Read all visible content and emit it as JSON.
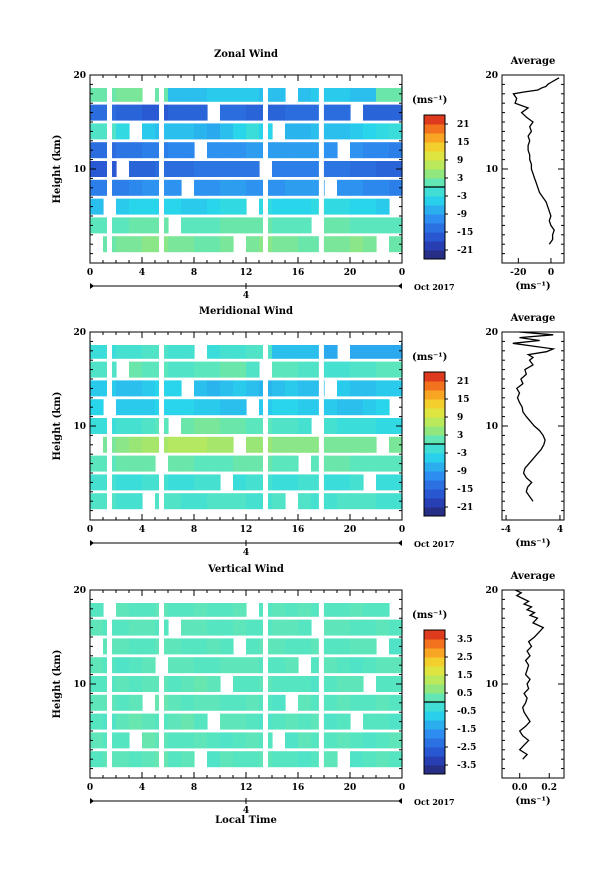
{
  "bottom_xlabel": "Local Time",
  "chart_data": [
    {
      "type": "heatmap",
      "title": "Zonal Wind",
      "ylabel": "Height (km)",
      "x": [
        0,
        1,
        2,
        3,
        4,
        5,
        6,
        7,
        8,
        9,
        10,
        11,
        12,
        13,
        14,
        15,
        16,
        17,
        18,
        19,
        20,
        21,
        22,
        23
      ],
      "y": [
        2,
        4,
        6,
        8,
        10,
        12,
        14,
        16,
        18
      ],
      "xlim": [
        0,
        24
      ],
      "ylim": [
        0,
        20
      ],
      "xticks": [
        "0",
        "4",
        "8",
        "12",
        "16",
        "20",
        "0"
      ],
      "yticks": [
        "20",
        "10"
      ],
      "date_labels": [
        "4"
      ],
      "date_suffix": "Oct 2017",
      "gaps": [
        1.5,
        5.5,
        13.5,
        17.8
      ],
      "colorbar": {
        "unit": "(ms⁻¹)",
        "ticks": [
          "21",
          "15",
          "9",
          "3",
          "-3",
          "-9",
          "-15",
          "-21"
        ],
        "range": [
          -24,
          24
        ]
      },
      "values": [
        [
          2,
          2,
          3,
          3,
          4,
          4,
          3,
          3,
          2,
          2,
          3,
          3,
          3,
          4,
          3,
          3,
          2,
          2,
          3,
          3,
          4,
          3,
          2,
          2
        ],
        [
          1,
          1,
          1,
          2,
          2,
          2,
          2,
          1,
          1,
          1,
          2,
          2,
          2,
          2,
          1,
          1,
          1,
          2,
          2,
          2,
          1,
          1,
          1,
          1
        ],
        [
          -6,
          -6,
          -5,
          -4,
          -4,
          -4,
          -4,
          -5,
          -5,
          -4,
          -3,
          -3,
          -3,
          -3,
          -4,
          -4,
          -4,
          -3,
          -3,
          -3,
          -4,
          -4,
          -5,
          -5
        ],
        [
          -12,
          -12,
          -12,
          -11,
          -10,
          -10,
          -10,
          -11,
          -10,
          -10,
          -9,
          -9,
          -10,
          -10,
          -10,
          -9,
          -9,
          -9,
          -9,
          -10,
          -10,
          -11,
          -11,
          -12
        ],
        [
          -16,
          -16,
          -16,
          -15,
          -15,
          -14,
          -14,
          -14,
          -13,
          -13,
          -13,
          -13,
          -13,
          -13,
          -12,
          -12,
          -12,
          -12,
          -13,
          -13,
          -14,
          -14,
          -15,
          -15
        ],
        [
          -14,
          -14,
          -13,
          -13,
          -12,
          -12,
          -11,
          -11,
          -11,
          -10,
          -10,
          -10,
          -9,
          -9,
          -9,
          -9,
          -9,
          -9,
          -10,
          -10,
          -10,
          -11,
          -11,
          -12
        ],
        [
          0,
          0,
          -3,
          -4,
          -5,
          -6,
          -6,
          -6,
          -7,
          -8,
          -6,
          -4,
          -2,
          -4,
          -6,
          -7,
          -7,
          -6,
          -6,
          -6,
          -5,
          -4,
          -3,
          -2
        ],
        [
          -14,
          -14,
          -15,
          -15,
          -16,
          -16,
          -15,
          -15,
          -15,
          -14,
          -14,
          -14,
          -15,
          -15,
          -15,
          -14,
          -14,
          -14,
          -14,
          -14,
          -15,
          -15,
          -15,
          -15
        ],
        [
          2,
          2,
          3,
          3,
          2,
          2,
          -6,
          -6,
          -6,
          -5,
          -5,
          -5,
          -5,
          -6,
          -6,
          -6,
          -6,
          -5,
          -5,
          -5,
          -6,
          -6,
          2,
          2
        ]
      ],
      "profile": {
        "title": "Average",
        "xlabel": "(ms⁻¹)",
        "xlim": [
          -30,
          8
        ],
        "xticks": [
          "-20",
          "0"
        ],
        "yticks": [
          "20",
          "10"
        ],
        "x": [
          -1,
          1,
          1,
          2,
          0,
          -1,
          0,
          -1,
          -2,
          -3,
          -5,
          -7,
          -8,
          -9,
          -10,
          -11,
          -12,
          -12,
          -13,
          -13,
          -14,
          -14,
          -13,
          -14,
          -12,
          -13,
          -11,
          -15,
          -18,
          -14,
          -22,
          -21,
          -23,
          -16,
          -8,
          -6,
          -3,
          -2,
          0,
          2,
          5
        ],
        "y": [
          2,
          2.5,
          3,
          3.5,
          4,
          4.5,
          5,
          5.5,
          6,
          6.5,
          7,
          7.5,
          8,
          8.5,
          9,
          9.5,
          10,
          10.5,
          11,
          11.5,
          12,
          12.5,
          13,
          13.5,
          14,
          14.5,
          15,
          15.5,
          16,
          16.5,
          17,
          17.5,
          18,
          18.2,
          18.4,
          18.6,
          18.8,
          19,
          19.2,
          19.4,
          19.7
        ]
      }
    },
    {
      "type": "heatmap",
      "title": "Meridional Wind",
      "ylabel": "Height (km)",
      "x": [
        0,
        1,
        2,
        3,
        4,
        5,
        6,
        7,
        8,
        9,
        10,
        11,
        12,
        13,
        14,
        15,
        16,
        17,
        18,
        19,
        20,
        21,
        22,
        23
      ],
      "y": [
        2,
        4,
        6,
        8,
        10,
        12,
        14,
        16,
        18
      ],
      "xlim": [
        0,
        24
      ],
      "ylim": [
        0,
        20
      ],
      "xticks": [
        "0",
        "4",
        "8",
        "12",
        "16",
        "20",
        "0"
      ],
      "yticks": [
        "20",
        "10"
      ],
      "date_labels": [
        "4"
      ],
      "date_suffix": "Oct 2017",
      "gaps": [
        1.5,
        5.5,
        13.5,
        17.8
      ],
      "colorbar": {
        "unit": "(ms⁻¹)",
        "ticks": [
          "21",
          "15",
          "9",
          "3",
          "-3",
          "-9",
          "-15",
          "-21"
        ],
        "range": [
          -24,
          24
        ]
      },
      "values": [
        [
          0,
          0,
          -1,
          -1,
          0,
          0,
          0,
          -1,
          -1,
          0,
          0,
          0,
          -1,
          -1,
          0,
          0,
          0,
          -1,
          -1,
          0,
          0,
          0,
          -1,
          -1
        ],
        [
          -1,
          -1,
          -2,
          -2,
          -1,
          -1,
          -2,
          -2,
          -1,
          -1,
          -2,
          -2,
          -1,
          -1,
          -2,
          -2,
          -1,
          -1,
          -2,
          -2,
          -1,
          -1,
          -2,
          -2
        ],
        [
          1,
          1,
          2,
          2,
          2,
          2,
          2,
          2,
          1,
          1,
          1,
          2,
          2,
          2,
          1,
          1,
          1,
          1,
          2,
          2,
          1,
          1,
          1,
          1
        ],
        [
          3,
          3,
          4,
          5,
          6,
          6,
          7,
          7,
          7,
          6,
          6,
          5,
          5,
          5,
          4,
          4,
          4,
          4,
          3,
          3,
          3,
          3,
          3,
          3
        ],
        [
          -2,
          -2,
          -1,
          -1,
          0,
          1,
          2,
          2,
          3,
          3,
          2,
          2,
          1,
          1,
          0,
          0,
          -1,
          -1,
          -1,
          -2,
          -2,
          -2,
          -3,
          -3
        ],
        [
          -4,
          -4,
          -5,
          -5,
          -5,
          -4,
          -4,
          -4,
          -5,
          -5,
          -6,
          -6,
          -5,
          -5,
          -4,
          -4,
          -5,
          -5,
          -5,
          -6,
          -6,
          -5,
          -4,
          -4
        ],
        [
          -5,
          -5,
          -6,
          -6,
          -5,
          -4,
          -4,
          -5,
          -6,
          -7,
          -6,
          -5,
          -6,
          -7,
          -6,
          -5,
          -6,
          -6,
          -5,
          -5,
          -6,
          -6,
          -5,
          -5
        ],
        [
          0,
          0,
          2,
          2,
          1,
          1,
          0,
          0,
          1,
          1,
          2,
          2,
          0,
          0,
          1,
          1,
          0,
          0,
          -1,
          -1,
          0,
          0,
          1,
          1
        ],
        [
          -2,
          -2,
          -1,
          -1,
          0,
          0,
          -1,
          -1,
          -2,
          -2,
          -1,
          -1,
          0,
          0,
          -6,
          -6,
          -6,
          -6,
          -8,
          -8,
          -8,
          -8,
          -8,
          -8
        ]
      ],
      "profile": {
        "title": "Average",
        "xlabel": "(ms⁻¹)",
        "xlim": [
          -4.6,
          4.6
        ],
        "xticks": [
          "-4",
          "4"
        ],
        "yticks": [
          "20",
          "10"
        ],
        "x": [
          0,
          -0.5,
          -1,
          -0.8,
          -0.2,
          -1,
          -1.4,
          -1.2,
          -0.6,
          0,
          0.6,
          1.2,
          1.6,
          1.8,
          1.5,
          1,
          0.2,
          -0.4,
          -1,
          -1.5,
          -1.6,
          -2,
          -2.3,
          -2,
          -2.4,
          -1.5,
          -1.8,
          -1,
          -1.2,
          0,
          -0.5,
          0,
          -0.7,
          2,
          3,
          0,
          -3,
          1,
          -2,
          3,
          -2
        ],
        "y": [
          2,
          2.5,
          3,
          3.5,
          4,
          4.5,
          5,
          5.5,
          6,
          6.5,
          7,
          7.5,
          8,
          8.5,
          9,
          9.5,
          10,
          10.5,
          11,
          11.5,
          12,
          12.5,
          13,
          13.5,
          14,
          14.5,
          15,
          15.5,
          16,
          16.5,
          17,
          17.3,
          17.6,
          17.9,
          18.2,
          18.5,
          18.8,
          19.1,
          19.4,
          19.7,
          20
        ]
      }
    },
    {
      "type": "heatmap",
      "title": "Vertical Wind",
      "ylabel": "Height (km)",
      "x": [
        0,
        1,
        2,
        3,
        4,
        5,
        6,
        7,
        8,
        9,
        10,
        11,
        12,
        13,
        14,
        15,
        16,
        17,
        18,
        19,
        20,
        21,
        22,
        23
      ],
      "y": [
        2,
        4,
        6,
        8,
        10,
        12,
        14,
        16,
        18
      ],
      "xlim": [
        0,
        24
      ],
      "ylim": [
        0,
        20
      ],
      "xticks": [
        "0",
        "4",
        "8",
        "12",
        "16",
        "20",
        "0"
      ],
      "yticks": [
        "20",
        "10"
      ],
      "date_labels": [
        "4"
      ],
      "date_suffix": "Oct 2017",
      "gaps": [
        1.5,
        5.5,
        13.5,
        17.8
      ],
      "colorbar": {
        "unit": "(ms⁻¹)",
        "ticks": [
          "3.5",
          "2.5",
          "1.5",
          "0.5",
          "-0.5",
          "-1.5",
          "-2.5",
          "-3.5"
        ],
        "range": [
          -4,
          4
        ]
      },
      "values": [
        [
          0.1,
          0.2,
          0.2,
          0.1,
          0.2,
          0.3,
          0.1,
          0.2,
          0.1,
          0.0,
          0.2,
          0.1,
          0.1,
          0.2,
          0.1,
          0.1,
          0.0,
          0.1,
          0.2,
          0.1,
          0.0,
          0.1,
          0.2,
          0.1
        ],
        [
          0.2,
          0.1,
          0.1,
          0.2,
          0.3,
          0.2,
          0.1,
          0.1,
          0.2,
          0.1,
          0.0,
          0.1,
          0.2,
          0.1,
          0.1,
          0.0,
          0.2,
          0.1,
          0.1,
          0.2,
          0.1,
          0.0,
          0.1,
          0.2
        ],
        [
          0.1,
          0.0,
          0.2,
          0.3,
          0.2,
          0.1,
          0.2,
          0.3,
          0.1,
          0.1,
          0.2,
          0.2,
          0.1,
          0.0,
          0.1,
          0.2,
          0.1,
          0.2,
          0.0,
          0.1,
          0.2,
          0.1,
          0.1,
          0.0
        ],
        [
          0.2,
          0.2,
          0.1,
          0.2,
          0.3,
          0.3,
          0.2,
          0.1,
          0.2,
          0.2,
          0.1,
          0.1,
          0.2,
          0.1,
          0.0,
          0.1,
          0.2,
          0.1,
          0.1,
          0.2,
          0.1,
          0.1,
          0.2,
          0.1
        ],
        [
          0.1,
          0.1,
          0.2,
          0.1,
          0.2,
          0.2,
          0.1,
          0.2,
          0.3,
          0.2,
          0.2,
          0.1,
          0.1,
          0.2,
          0.1,
          0.1,
          0.1,
          0.0,
          0.1,
          0.2,
          0.2,
          0.1,
          0.1,
          0.1
        ],
        [
          0.2,
          0.1,
          0.0,
          0.1,
          0.2,
          0.1,
          0.2,
          0.2,
          0.1,
          0.1,
          0.2,
          0.2,
          0.2,
          0.1,
          0.1,
          0.2,
          0.1,
          0.1,
          0.2,
          0.1,
          0.0,
          0.1,
          0.2,
          0.2
        ],
        [
          0.1,
          0.2,
          0.2,
          0.1,
          0.1,
          0.2,
          0.2,
          0.1,
          0.1,
          0.2,
          0.1,
          0.0,
          0.1,
          0.2,
          0.2,
          0.1,
          0.1,
          0.2,
          0.1,
          0.1,
          0.2,
          0.2,
          0.1,
          0.0
        ],
        [
          0.2,
          0.1,
          0.1,
          0.2,
          0.2,
          0.1,
          0.1,
          0.2,
          0.2,
          0.1,
          0.1,
          0.2,
          0.1,
          0.1,
          0.2,
          0.2,
          0.1,
          0.1,
          0.2,
          0.2,
          0.1,
          0.1,
          0.2,
          0.1
        ],
        [
          0.1,
          0.1,
          0.2,
          0.1,
          0.1,
          0.2,
          0.1,
          0.1,
          0.2,
          0.1,
          0.1,
          0.2,
          0.1,
          0.1,
          0.2,
          0.1,
          0.2,
          0.1,
          0.1,
          0.1,
          0.2,
          0.1,
          0.1,
          0.2
        ]
      ],
      "profile": {
        "title": "Average",
        "xlabel": "(ms⁻¹)",
        "xlim": [
          -0.12,
          0.3
        ],
        "xticks": [
          "0.0",
          "0.2"
        ],
        "yticks": [
          "20",
          "10"
        ],
        "x": [
          0.02,
          0.05,
          0.0,
          0.03,
          0.06,
          0.02,
          0.0,
          0.04,
          0.07,
          0.05,
          0.03,
          0.02,
          0.04,
          0.05,
          0.03,
          0.06,
          0.05,
          0.07,
          0.04,
          0.05,
          0.06,
          0.04,
          0.07,
          0.05,
          0.08,
          0.06,
          0.1,
          0.13,
          0.16,
          0.09,
          0.12,
          0.07,
          0.1,
          0.05,
          0.08,
          0.03,
          0.06,
          0.02,
          -0.02,
          0.01,
          -0.03
        ],
        "y": [
          2,
          2.5,
          3,
          3.5,
          4,
          4.5,
          5,
          5.5,
          6,
          6.5,
          7,
          7.5,
          8,
          8.5,
          9,
          9.5,
          10,
          10.5,
          11,
          11.5,
          12,
          12.5,
          13,
          13.5,
          14,
          14.5,
          15,
          15.5,
          16,
          16.5,
          17,
          17.3,
          17.6,
          17.9,
          18.2,
          18.5,
          18.8,
          19.1,
          19.4,
          19.7,
          20
        ]
      }
    }
  ]
}
